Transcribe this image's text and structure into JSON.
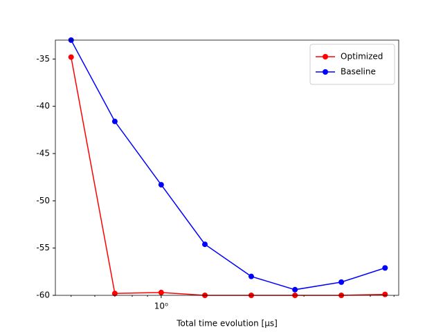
{
  "chart_data": {
    "type": "line",
    "xlabel": "Total time evolution [μs]",
    "x": [
      0.5,
      0.7,
      1.0,
      1.4,
      2.0,
      2.8,
      4.0,
      5.6
    ],
    "series": [
      {
        "name": "Optimized",
        "color": "#ff0000",
        "values": [
          -34.8,
          -59.8,
          -59.7,
          -60.0,
          -60.0,
          -60.0,
          -60.0,
          -59.9
        ]
      },
      {
        "name": "Baseline",
        "color": "#0000ff",
        "values": [
          -33.0,
          -41.6,
          -48.3,
          -54.6,
          -58.0,
          -59.4,
          -58.6,
          -57.1
        ]
      }
    ],
    "xscale": "log",
    "xlim": [
      0.443,
      6.22
    ],
    "xticks": [
      {
        "value": 1,
        "label": "10⁰"
      }
    ],
    "xminorticks": [
      0.5,
      0.6,
      0.7,
      0.8,
      0.9,
      2,
      3,
      4,
      5,
      6
    ],
    "ylim": [
      -60,
      -33
    ],
    "yticks": [
      -35,
      -40,
      -45,
      -50,
      -55,
      -60
    ],
    "legend": "upper right"
  }
}
